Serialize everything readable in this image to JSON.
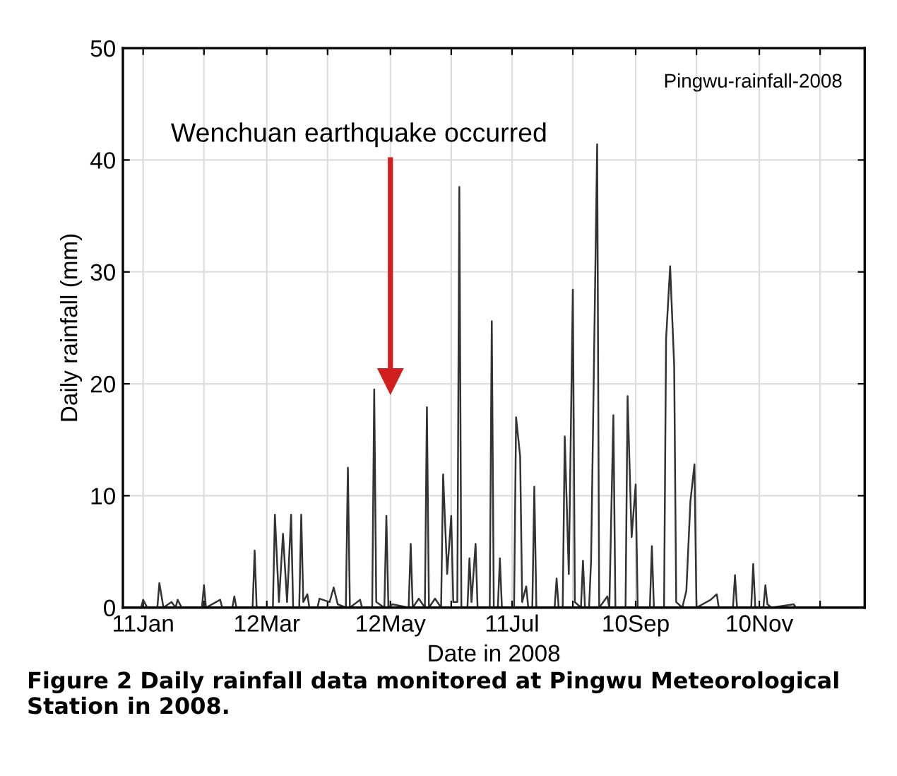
{
  "chart_data": {
    "type": "line",
    "xlabel": "Date in 2008",
    "ylabel": "Daily rainfall (mm)",
    "xlim": [
      "2008-01-01",
      "2009-01-01"
    ],
    "xticks": [
      {
        "value": "2008-01-11",
        "label": "11Jan"
      },
      {
        "value": "2008-02-10",
        "label": null
      },
      {
        "value": "2008-03-12",
        "label": "12Mar"
      },
      {
        "value": "2008-04-11",
        "label": null
      },
      {
        "value": "2008-05-12",
        "label": "12May"
      },
      {
        "value": "2008-06-11",
        "label": null
      },
      {
        "value": "2008-07-11",
        "label": "11Jul"
      },
      {
        "value": "2008-08-10",
        "label": null
      },
      {
        "value": "2008-09-10",
        "label": "10Sep"
      },
      {
        "value": "2008-10-10",
        "label": null
      },
      {
        "value": "2008-11-10",
        "label": "10Nov"
      },
      {
        "value": "2008-12-10",
        "label": null
      }
    ],
    "ylim": [
      0,
      50
    ],
    "yticks": [
      0,
      10,
      20,
      30,
      40,
      50
    ],
    "grid": true,
    "marker": "none",
    "line_style": "solid",
    "series": [
      {
        "color": "#333333",
        "x": [
          "2008-01-01",
          "2008-01-10",
          "2008-01-11",
          "2008-01-13",
          "2008-01-18",
          "2008-01-19",
          "2008-01-21",
          "2008-01-25",
          "2008-01-27",
          "2008-01-28",
          "2008-01-30",
          "2008-02-09",
          "2008-02-10",
          "2008-02-11",
          "2008-02-18",
          "2008-02-19",
          "2008-02-24",
          "2008-02-25",
          "2008-02-26",
          "2008-03-05",
          "2008-03-06",
          "2008-03-07",
          "2008-03-15",
          "2008-03-16",
          "2008-03-18",
          "2008-03-20",
          "2008-03-22",
          "2008-03-24",
          "2008-03-25",
          "2008-03-28",
          "2008-03-29",
          "2008-03-30",
          "2008-04-01",
          "2008-04-02",
          "2008-04-06",
          "2008-04-07",
          "2008-04-12",
          "2008-04-14",
          "2008-04-16",
          "2008-04-20",
          "2008-04-21",
          "2008-04-22",
          "2008-04-27",
          "2008-04-28",
          "2008-05-03",
          "2008-05-04",
          "2008-05-05",
          "2008-05-09",
          "2008-05-10",
          "2008-05-11",
          "2008-05-13",
          "2008-05-21",
          "2008-05-22",
          "2008-05-23",
          "2008-05-26",
          "2008-05-29",
          "2008-05-30",
          "2008-05-31",
          "2008-06-03",
          "2008-06-06",
          "2008-06-07",
          "2008-06-09",
          "2008-06-11",
          "2008-06-12",
          "2008-06-14",
          "2008-06-15",
          "2008-06-16",
          "2008-06-19",
          "2008-06-20",
          "2008-06-21",
          "2008-06-23",
          "2008-06-24",
          "2008-06-30",
          "2008-07-01",
          "2008-07-02",
          "2008-07-04",
          "2008-07-05",
          "2008-07-06",
          "2008-07-12",
          "2008-07-13",
          "2008-07-15",
          "2008-07-16",
          "2008-07-18",
          "2008-07-19",
          "2008-07-21",
          "2008-07-22",
          "2008-07-23",
          "2008-08-01",
          "2008-08-02",
          "2008-08-03",
          "2008-08-05",
          "2008-08-06",
          "2008-08-08",
          "2008-08-10",
          "2008-08-11",
          "2008-08-14",
          "2008-08-15",
          "2008-08-16",
          "2008-08-18",
          "2008-08-19",
          "2008-08-22",
          "2008-08-23",
          "2008-08-27",
          "2008-08-28",
          "2008-08-30",
          "2008-08-31",
          "2008-09-05",
          "2008-09-06",
          "2008-09-08",
          "2008-09-10",
          "2008-09-11",
          "2008-09-17",
          "2008-09-18",
          "2008-09-19",
          "2008-09-24",
          "2008-09-25",
          "2008-09-27",
          "2008-09-29",
          "2008-09-30",
          "2008-10-03",
          "2008-10-05",
          "2008-10-07",
          "2008-10-09",
          "2008-10-10",
          "2008-10-17",
          "2008-10-20",
          "2008-10-21",
          "2008-10-28",
          "2008-10-29",
          "2008-10-30",
          "2008-11-06",
          "2008-11-07",
          "2008-11-08",
          "2008-11-12",
          "2008-11-13",
          "2008-11-14",
          "2008-11-16",
          "2008-11-27",
          "2008-11-28",
          "2008-12-31"
        ],
        "values": [
          0,
          0,
          0.7,
          0,
          0,
          2.2,
          0,
          0.5,
          0,
          0.7,
          0,
          0,
          2.0,
          0,
          0.7,
          0,
          0,
          1.0,
          0,
          0,
          5.1,
          0,
          0,
          8.3,
          0.5,
          6.6,
          0.5,
          8.3,
          0,
          0,
          8.3,
          0.5,
          1.2,
          0,
          0,
          0.8,
          0.5,
          1.8,
          0.3,
          0,
          12.5,
          0,
          0.7,
          0,
          0,
          19.5,
          0.5,
          0,
          8.2,
          0,
          0.3,
          0,
          5.7,
          0,
          0.8,
          0,
          17.9,
          0,
          0.8,
          0,
          11.9,
          3.0,
          8.2,
          0.5,
          0.5,
          37.6,
          0,
          0,
          4.4,
          0.5,
          5.7,
          0,
          0,
          25.6,
          0,
          0,
          4.4,
          0,
          0,
          17.0,
          13.5,
          0.5,
          1.9,
          0,
          0,
          10.8,
          0,
          0,
          2.6,
          0,
          0,
          15.3,
          3.0,
          28.4,
          0.5,
          0,
          4.2,
          0,
          0,
          4.2,
          41.4,
          0,
          1.0,
          0,
          17.2,
          0,
          0,
          18.9,
          6.3,
          11.0,
          0,
          0,
          5.5,
          0,
          0,
          24.0,
          30.5,
          21.6,
          0.5,
          0,
          1.5,
          9.5,
          12.8,
          0,
          0.7,
          1.2,
          0,
          0,
          2.9,
          0,
          0,
          3.9,
          0,
          0,
          2.0,
          0.3,
          0,
          0.3,
          0,
          0
        ]
      }
    ],
    "annotations": [
      "Pingwu-rainfall-2008",
      "Figure 2 Daily rainfall data monitored at Pingwu Meteorological Station in 2008."
    ],
    "ref_lines": [
      {
        "axis": "x",
        "value": "2008-05-12",
        "label": "Wenchuan earthquake occurred",
        "color": "#d11f1f"
      }
    ]
  }
}
